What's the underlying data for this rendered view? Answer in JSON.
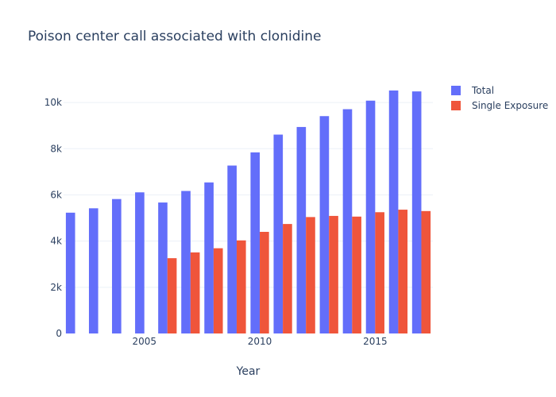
{
  "chart_data": {
    "type": "bar",
    "title": "Poison center call associated with clonidine",
    "xlabel": "Year",
    "ylabel": "",
    "x": [
      2002,
      2003,
      2004,
      2005,
      2006,
      2007,
      2008,
      2009,
      2010,
      2011,
      2012,
      2013,
      2014,
      2015,
      2016,
      2017
    ],
    "x_ticks": [
      2005,
      2010,
      2015
    ],
    "x_tick_labels": [
      "2005",
      "2010",
      "2015"
    ],
    "ylim": [
      0,
      11000
    ],
    "y_ticks": [
      0,
      2000,
      4000,
      6000,
      8000,
      10000
    ],
    "y_tick_labels": [
      "0",
      "2k",
      "4k",
      "6k",
      "8k",
      "10k"
    ],
    "grid": true,
    "legend_position": "top-right",
    "series": [
      {
        "name": "Total",
        "color": "#636efa",
        "values": [
          5230,
          5420,
          5820,
          6110,
          5670,
          6170,
          6540,
          7270,
          7840,
          8610,
          8940,
          9410,
          9710,
          10080,
          10520,
          10480
        ]
      },
      {
        "name": "Single Exposure",
        "color": "#ef553b",
        "values": [
          null,
          null,
          null,
          null,
          3260,
          3510,
          3690,
          4030,
          4400,
          4740,
          5040,
          5090,
          5060,
          5250,
          5360,
          5300
        ]
      }
    ]
  }
}
